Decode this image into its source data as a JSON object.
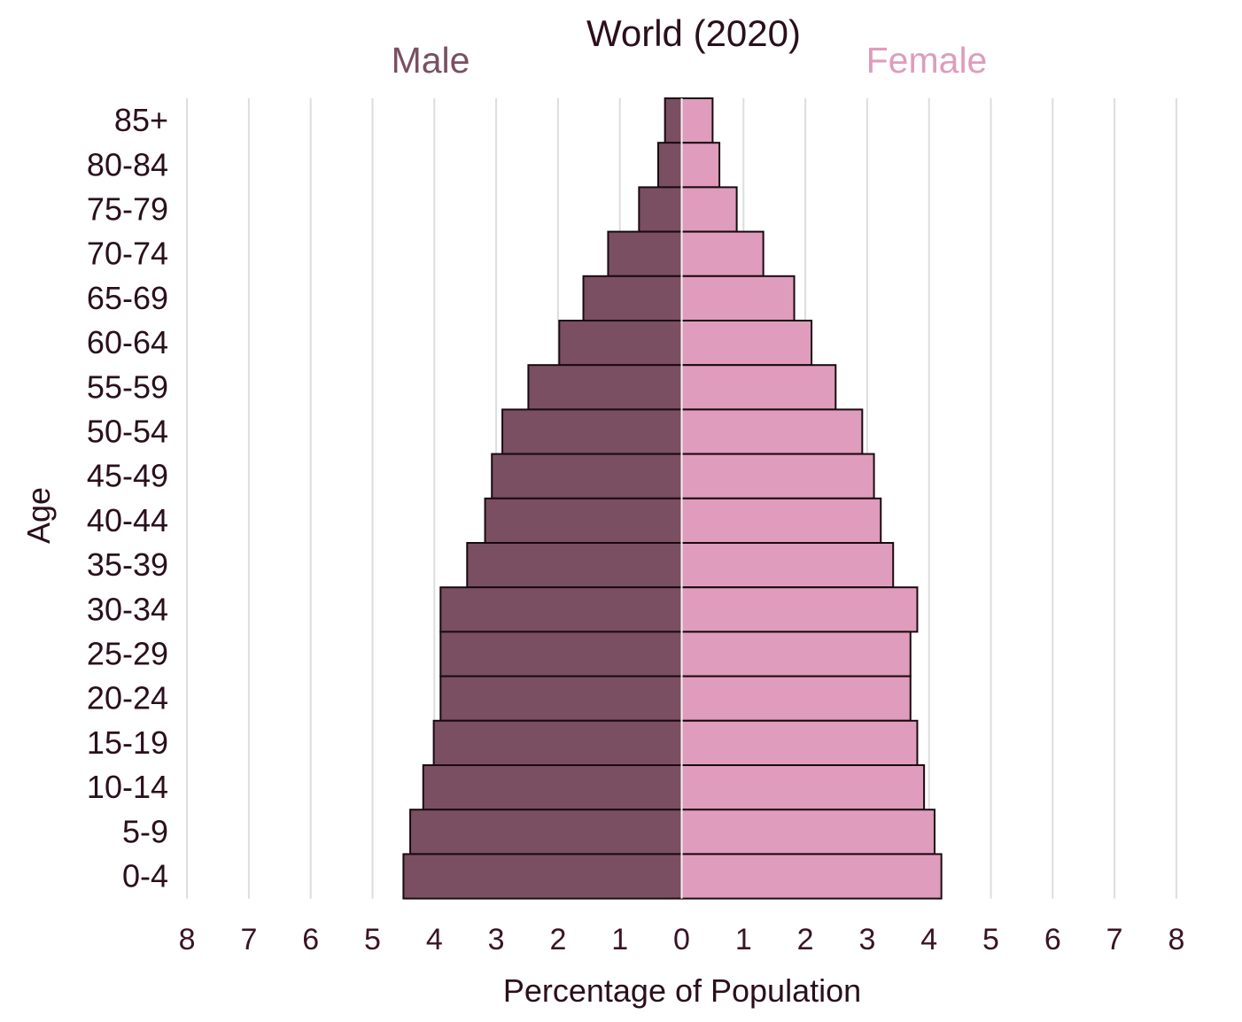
{
  "chart_data": {
    "type": "bar",
    "orientation": "horizontal",
    "title": "World (2020)",
    "xlabel": "Percentage of Population",
    "ylabel": "Age",
    "xlim": [
      -8,
      8
    ],
    "x_ticks": [
      8,
      7,
      6,
      5,
      4,
      3,
      2,
      1,
      0,
      1,
      2,
      3,
      4,
      5,
      6,
      7,
      8
    ],
    "grid": "vertical",
    "categories": [
      "85+",
      "80-84",
      "75-79",
      "70-74",
      "65-69",
      "60-64",
      "55-59",
      "50-54",
      "45-49",
      "40-44",
      "35-39",
      "30-34",
      "25-29",
      "20-24",
      "15-19",
      "10-14",
      "5-9",
      "0-4"
    ],
    "series": [
      {
        "name": "Male",
        "color": "#7a4f62",
        "values": [
          0.27,
          0.38,
          0.69,
          1.19,
          1.59,
          1.98,
          2.48,
          2.9,
          3.07,
          3.18,
          3.47,
          3.9,
          3.9,
          3.9,
          4.01,
          4.18,
          4.39,
          4.5
        ]
      },
      {
        "name": "Female",
        "color": "#df9cbc",
        "values": [
          0.5,
          0.61,
          0.89,
          1.32,
          1.82,
          2.1,
          2.49,
          2.92,
          3.11,
          3.22,
          3.42,
          3.81,
          3.7,
          3.7,
          3.81,
          3.92,
          4.09,
          4.2
        ]
      }
    ],
    "label_colors": {
      "male": "#7a4f62",
      "female": "#df9cbc"
    }
  }
}
